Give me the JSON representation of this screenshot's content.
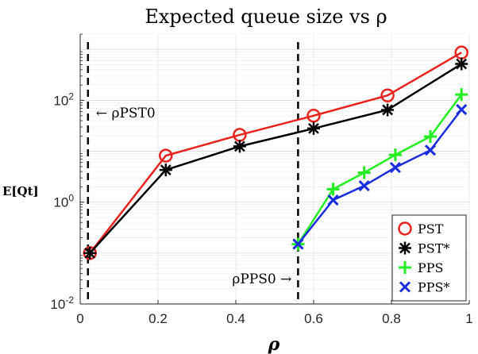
{
  "chart_data": {
    "type": "line",
    "title": "Expected queue size vs ρ",
    "xlabel": "ρ",
    "ylabel": "E[Qt]",
    "y_scale": "log",
    "xlim": [
      0,
      1
    ],
    "ylim": [
      0.01,
      2000
    ],
    "grid": true,
    "legend_position": "bottom-right",
    "x_ticks": [
      {
        "value": 0,
        "label": "0"
      },
      {
        "value": 0.2,
        "label": "0.2"
      },
      {
        "value": 0.4,
        "label": "0.4"
      },
      {
        "value": 0.6,
        "label": "0.6"
      },
      {
        "value": 0.8,
        "label": "0.8"
      },
      {
        "value": 1,
        "label": "1"
      }
    ],
    "y_ticks": [
      {
        "value": 0.01,
        "base": "10",
        "exp": "-2"
      },
      {
        "value": 1,
        "base": "10",
        "exp": "0"
      },
      {
        "value": 100,
        "base": "10",
        "exp": "2"
      }
    ],
    "vlines": [
      {
        "x": 0.02,
        "label": "← ρPST0",
        "label_side": "right"
      },
      {
        "x": 0.56,
        "label": "ρPPS0 →",
        "label_side": "left"
      }
    ],
    "series": [
      {
        "name": "PST",
        "color": "#e8231e",
        "marker": "circle",
        "x": [
          0.025,
          0.22,
          0.41,
          0.6,
          0.79,
          0.98
        ],
        "y": [
          0.1,
          8.2,
          21,
          50,
          125,
          870
        ]
      },
      {
        "name": "PST*",
        "color": "#000000",
        "marker": "asterisk",
        "x": [
          0.025,
          0.22,
          0.41,
          0.6,
          0.79,
          0.98
        ],
        "y": [
          0.1,
          4.3,
          12.5,
          28,
          65,
          520
        ]
      },
      {
        "name": "PPS",
        "color": "#22ee22",
        "marker": "plus",
        "x": [
          0.56,
          0.65,
          0.73,
          0.81,
          0.9,
          0.98
        ],
        "y": [
          0.15,
          1.8,
          3.8,
          8.5,
          19.5,
          130
        ]
      },
      {
        "name": "PPS*",
        "color": "#1a2ee0",
        "marker": "x",
        "x": [
          0.56,
          0.65,
          0.73,
          0.81,
          0.9,
          0.98
        ],
        "y": [
          0.15,
          1.1,
          2.1,
          4.8,
          10.5,
          66
        ]
      }
    ]
  }
}
